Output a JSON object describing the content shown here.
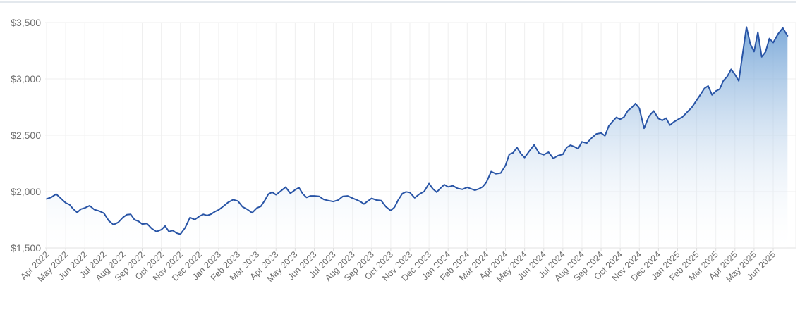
{
  "chart_data": {
    "type": "area",
    "title": "",
    "legend": false,
    "grid": true,
    "y_axis": {
      "min": 1500,
      "max": 3500,
      "step": 500,
      "tick_labels": [
        "$1,500",
        "$2,000",
        "$2,500",
        "$3,000",
        "$3,500"
      ]
    },
    "x_axis": {
      "label_rotation": -45,
      "labels": [
        "Apr 2022",
        "May 2022",
        "Jun 2022",
        "Jul 2022",
        "Aug 2022",
        "Sep 2022",
        "Oct 2022",
        "Nov 2022",
        "Dec 2022",
        "Jan 2023",
        "Feb 2023",
        "Mar 2023",
        "Apr 2023",
        "May 2023",
        "Jun 2023",
        "Jul 2023",
        "Aug 2023",
        "Sep 2023",
        "Oct 2023",
        "Nov 2023",
        "Dec 2023",
        "Jan 2024",
        "Feb 2024",
        "Mar 2024",
        "Apr 2024",
        "May 2024",
        "Jun 2024",
        "Jul 2024",
        "Aug 2024",
        "Sep 2024",
        "Oct 2024",
        "Nov 2024",
        "Dec 2024",
        "Jan 2025",
        "Feb 2025",
        "Mar 2025",
        "Apr 2025",
        "May 2025",
        "Jun 2025"
      ]
    },
    "series": [
      {
        "months": [
          {
            "label": "Apr 2022",
            "values": [
              1935,
              1950,
              1978,
              1940
            ]
          },
          {
            "label": "May 2022",
            "values": [
              1900,
              1885,
              1845,
              1815,
              1845
            ]
          },
          {
            "label": "Jun 2022",
            "values": [
              1855,
              1875,
              1840,
              1828
            ]
          },
          {
            "label": "Jul 2022",
            "values": [
              1808,
              1742,
              1706,
              1727
            ]
          },
          {
            "label": "Aug 2022",
            "values": [
              1772,
              1795,
              1798,
              1750,
              1738
            ]
          },
          {
            "label": "Sep 2022",
            "values": [
              1712,
              1716,
              1672,
              1645
            ]
          },
          {
            "label": "Oct 2022",
            "values": [
              1662,
              1695,
              1645,
              1655,
              1632
            ]
          },
          {
            "label": "Nov 2022",
            "values": [
              1622,
              1680,
              1770,
              1752
            ]
          },
          {
            "label": "Dec 2022",
            "values": [
              1782,
              1798,
              1788,
              1800,
              1822
            ]
          },
          {
            "label": "Jan 2023",
            "values": [
              1838,
              1870,
              1905,
              1928
            ]
          },
          {
            "label": "Feb 2023",
            "values": [
              1917,
              1865,
              1842,
              1812
            ]
          },
          {
            "label": "Mar 2023",
            "values": [
              1855,
              1868,
              1918,
              1978,
              1995
            ]
          },
          {
            "label": "Apr 2023",
            "values": [
              1972,
              2005,
              2040,
              1985
            ]
          },
          {
            "label": "May 2023",
            "values": [
              2016,
              2035,
              1980,
              1948,
              1962
            ]
          },
          {
            "label": "Jun 2023",
            "values": [
              1962,
              1958,
              1930,
              1920
            ]
          },
          {
            "label": "Jul 2023",
            "values": [
              1912,
              1925,
              1958,
              1962
            ]
          },
          {
            "label": "Aug 2023",
            "values": [
              1942,
              1928,
              1913,
              1890,
              1916
            ]
          },
          {
            "label": "Sep 2023",
            "values": [
              1940,
              1925,
              1920,
              1865
            ]
          },
          {
            "label": "Oct 2023",
            "values": [
              1832,
              1862,
              1928,
              1982,
              1998
            ]
          },
          {
            "label": "Nov 2023",
            "values": [
              1992,
              1945,
              1978,
              2002
            ]
          },
          {
            "label": "Dec 2023",
            "values": [
              2072,
              2025,
              1995,
              2030,
              2062
            ]
          },
          {
            "label": "Jan 2024",
            "values": [
              2042,
              2052,
              2028,
              2020
            ]
          },
          {
            "label": "Feb 2024",
            "values": [
              2038,
              2025,
              2012,
              2024,
              2042
            ]
          },
          {
            "label": "Mar 2024",
            "values": [
              2082,
              2178,
              2158,
              2165
            ]
          },
          {
            "label": "Apr 2024",
            "values": [
              2232,
              2330,
              2345,
              2392,
              2338
            ]
          },
          {
            "label": "May 2024",
            "values": [
              2302,
              2360,
              2415,
              2342
            ]
          },
          {
            "label": "Jun 2024",
            "values": [
              2327,
              2350,
              2295,
              2320
            ]
          },
          {
            "label": "Jul 2024",
            "values": [
              2330,
              2392,
              2412,
              2398,
              2380
            ]
          },
          {
            "label": "Aug 2024",
            "values": [
              2442,
              2430,
              2475,
              2512
            ]
          },
          {
            "label": "Sep 2024",
            "values": [
              2520,
              2495,
              2582,
              2622,
              2658
            ]
          },
          {
            "label": "Oct 2024",
            "values": [
              2642,
              2662,
              2718,
              2745,
              2782
            ]
          },
          {
            "label": "Nov 2024",
            "values": [
              2738,
              2562,
              2668,
              2716
            ]
          },
          {
            "label": "Dec 2024",
            "values": [
              2648,
              2632,
              2652,
              2590,
              2618
            ]
          },
          {
            "label": "Jan 2025",
            "values": [
              2638,
              2662,
              2705,
              2748
            ]
          },
          {
            "label": "Feb 2025",
            "values": [
              2812,
              2862,
              2915,
              2938,
              2858
            ]
          },
          {
            "label": "Mar 2025",
            "values": [
              2892,
              2910,
              2985,
              3022,
              3085
            ]
          },
          {
            "label": "Apr 2025",
            "values": [
              3038,
              2982,
              3218,
              3460,
              3310
            ]
          },
          {
            "label": "May 2025",
            "values": [
              3242,
              3415,
              3195,
              3240,
              3358
            ]
          },
          {
            "label": "Jun 2025",
            "values": [
              3322,
              3398,
              3452,
              3382
            ]
          }
        ]
      }
    ],
    "colors": {
      "line": "#2854a6",
      "fill_top": "#72a3d6",
      "fill_bottom": "#ffffff",
      "grid": "#efefef",
      "axis_line": "#e0e0e0",
      "tick_mark": "#dcdcdc",
      "axis_label": "#6e6e6e",
      "top_border": "#e3e8ed",
      "background": "#ffffff"
    }
  }
}
